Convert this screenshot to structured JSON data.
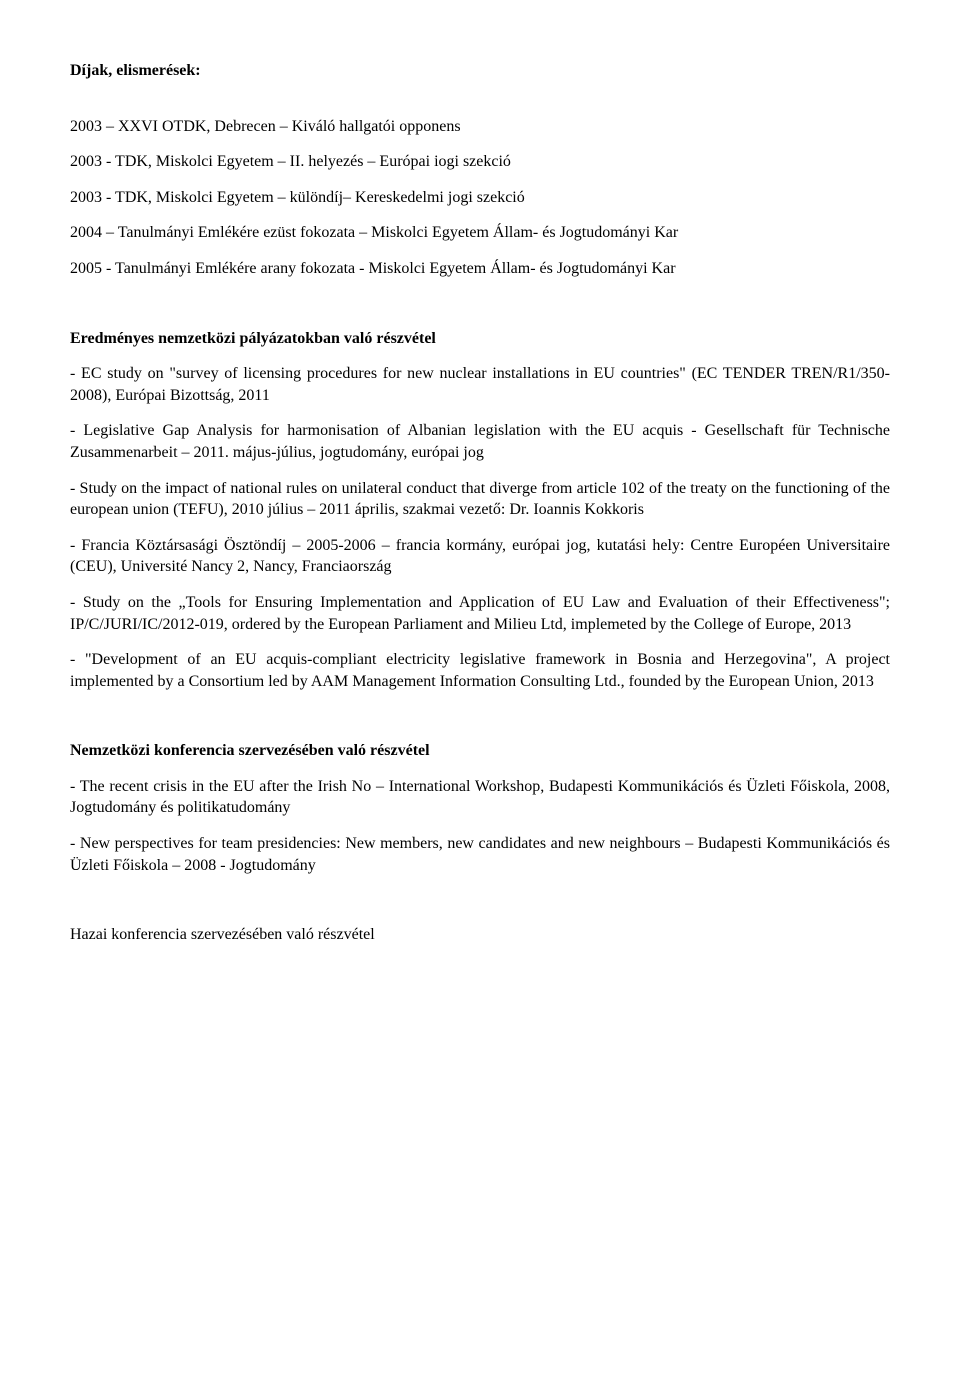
{
  "s1": {
    "title": "Díjak, elismerések:",
    "i1": "2003 – XXVI OTDK, Debrecen – Kiváló hallgatói opponens",
    "i2": "2003 - TDK, Miskolci Egyetem – II. helyezés – Európai iogi szekció",
    "i3": "2003 - TDK, Miskolci Egyetem – különdíj– Kereskedelmi jogi szekció",
    "i4": "2004 – Tanulmányi Emlékére ezüst fokozata – Miskolci Egyetem Állam- és Jogtudományi Kar",
    "i5": "2005 - Tanulmányi Emlékére arany fokozata - Miskolci Egyetem Állam- és Jogtudományi Kar"
  },
  "s2": {
    "title": "Eredményes nemzetközi pályázatokban való részvétel",
    "p1": "-        EC study on \"survey of licensing procedures for new nuclear installations in EU countries\" (EC TENDER TREN/R1/350-2008), Európai Bizottság, 2011",
    "p2": "-        Legislative Gap Analysis for harmonisation of Albanian legislation with the EU acquis - Gesellschaft für Technische Zusammenarbeit – 2011. május-július, jogtudomány, európai jog",
    "p3": "-        Study on the impact of national rules on unilateral conduct that diverge from article 102 of the treaty on the functioning of the european union (TEFU), 2010 július – 2011 április, szakmai vezető: Dr. Ioannis Kokkoris",
    "p4": "-        Francia Köztársasági Ösztöndíj – 2005-2006 – francia kormány, európai jog, kutatási hely: Centre Européen Universitaire (CEU), Université Nancy 2, Nancy, Franciaország",
    "p5": "-        Study on the „Tools for Ensuring Implementation and Application of EU Law and Evaluation of their Effectiveness\"; IP/C/JURI/IC/2012-019, ordered by the European Parliament and Milieu Ltd, implemeted by the College of Europe, 2013",
    "p6": "-        \"Development of an EU acquis-compliant electricity legislative framework in Bosnia and Herzegovina\", A project implemented by a Consortium led by AAM Management Information Consulting Ltd., founded by the European Union, 2013"
  },
  "s3": {
    "title": "Nemzetközi konferencia szervezésében való részvétel",
    "p1": "-        The recent crisis in the EU after the Irish No – International Workshop, Budapesti Kommunikációs és Üzleti Főiskola, 2008, Jogtudomány és politikatudomány",
    "p2": "-        New perspectives for team presidencies: New members, new candidates and new neighbours – Budapesti Kommunikációs és Üzleti Főiskola – 2008 - Jogtudomány"
  },
  "s4": {
    "title": "Hazai konferencia szervezésében való részvétel"
  }
}
